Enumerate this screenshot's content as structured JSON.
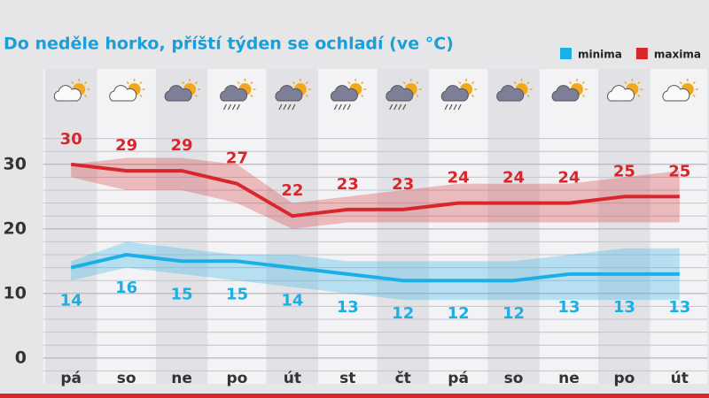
{
  "chart_data": {
    "type": "line",
    "title": "Do neděle horko, příští týden se ochladí (ve °C)",
    "categories": [
      "pá",
      "so",
      "ne",
      "po",
      "út",
      "st",
      "čt",
      "pá",
      "so",
      "ne",
      "po",
      "út"
    ],
    "series": [
      {
        "name": "minima",
        "color": "#1ab0e6",
        "values": [
          14,
          16,
          15,
          15,
          14,
          13,
          12,
          12,
          12,
          13,
          13,
          13
        ],
        "band_low": [
          12,
          14,
          13,
          12,
          11,
          10,
          9,
          9,
          9,
          9,
          9,
          9
        ],
        "band_high": [
          15,
          18,
          17,
          16,
          16,
          15,
          15,
          15,
          15,
          16,
          17,
          17
        ]
      },
      {
        "name": "maxima",
        "color": "#d9262c",
        "values": [
          30,
          29,
          29,
          27,
          22,
          23,
          23,
          24,
          24,
          24,
          25,
          25
        ],
        "band_low": [
          28,
          26,
          26,
          24,
          20,
          21,
          21,
          21,
          21,
          21,
          21,
          21
        ],
        "band_high": [
          30,
          31,
          31,
          30,
          24,
          25,
          26,
          27,
          27,
          27,
          28,
          29
        ]
      }
    ],
    "ylim": [
      -4,
      36
    ],
    "yticks": [
      0,
      10,
      20,
      30
    ],
    "minor_yticks": [
      -2,
      2,
      4,
      6,
      8,
      12,
      14,
      16,
      18,
      22,
      24,
      26,
      28,
      32,
      34
    ],
    "grid": true,
    "legend": "top-right"
  }
}
